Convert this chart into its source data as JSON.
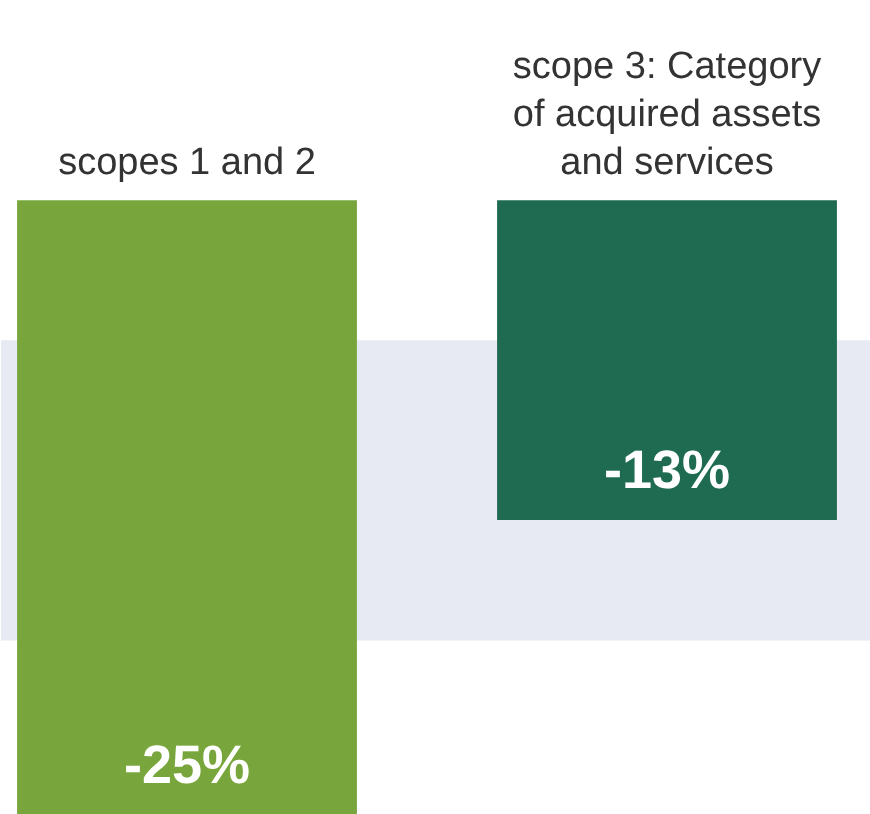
{
  "chart_data": {
    "type": "bar",
    "categories": [
      "scopes 1 and 2",
      "scope 3: Category of acquired assets and services"
    ],
    "values": [
      -25,
      -13
    ],
    "colors": [
      "#78a63c",
      "#1f6b52"
    ],
    "ylim": [
      -25,
      8.1
    ],
    "data_labels": true,
    "value_labels": [
      "-25%",
      "-13%"
    ],
    "bands": [
      {
        "axis": "y",
        "from": -17.9,
        "to": -5.7,
        "color": "#e8eaf3"
      }
    ],
    "grid": false,
    "tick_labels": false
  }
}
